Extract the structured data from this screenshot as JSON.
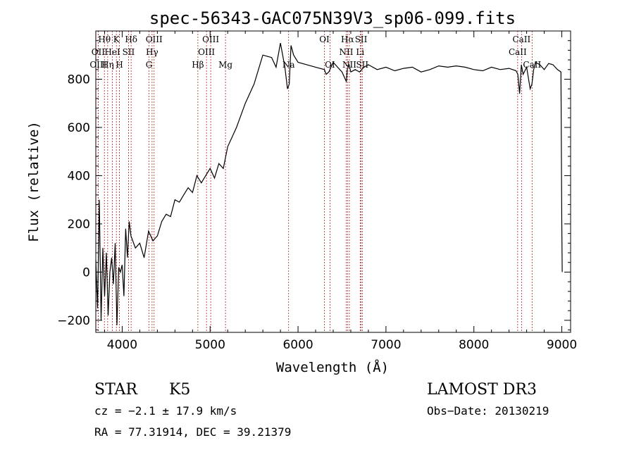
{
  "chart_data": {
    "type": "line",
    "title": "spec-56343-GAC075N39V3_sp06-099.fits",
    "xlabel": "Wavelength (Å)",
    "ylabel": "Flux (relative)",
    "xlim": [
      3700,
      9100
    ],
    "ylim": [
      -250,
      1000
    ],
    "xticks": [
      4000,
      5000,
      6000,
      7000,
      8000,
      9000
    ],
    "yticks": [
      -200,
      0,
      200,
      400,
      600,
      800
    ],
    "grid": false,
    "series": [
      {
        "x": [
          3700,
          3720,
          3740,
          3760,
          3780,
          3800,
          3820,
          3840,
          3860,
          3880,
          3900,
          3920,
          3940,
          3960,
          3980,
          4000,
          4020,
          4040,
          4060,
          4080,
          4100,
          4150,
          4200,
          4250,
          4300,
          4350,
          4400,
          4450,
          4500,
          4550,
          4600,
          4650,
          4700,
          4750,
          4800,
          4850,
          4900,
          4950,
          5000,
          5050,
          5100,
          5150,
          5200,
          5300,
          5400,
          5500,
          5600,
          5700,
          5750,
          5800,
          5850,
          5880,
          5900,
          5920,
          5950,
          6000,
          6100,
          6200,
          6300,
          6320,
          6350,
          6400,
          6450,
          6500,
          6550,
          6560,
          6580,
          6600,
          6650,
          6700,
          6750,
          6800,
          6900,
          7000,
          7100,
          7200,
          7300,
          7400,
          7500,
          7600,
          7700,
          7800,
          7900,
          8000,
          8100,
          8200,
          8300,
          8400,
          8480,
          8500,
          8520,
          8540,
          8560,
          8600,
          8640,
          8660,
          8680,
          8700,
          8750,
          8800,
          8850,
          8900,
          8950,
          8990,
          9000,
          9005
        ],
        "y": [
          50,
          -150,
          300,
          -200,
          100,
          -100,
          80,
          -180,
          0,
          60,
          -50,
          120,
          -220,
          20,
          0,
          30,
          -100,
          180,
          60,
          210,
          150,
          100,
          120,
          60,
          170,
          130,
          150,
          210,
          240,
          230,
          300,
          290,
          320,
          350,
          330,
          400,
          370,
          400,
          430,
          390,
          450,
          430,
          520,
          600,
          700,
          780,
          900,
          890,
          850,
          950,
          850,
          760,
          780,
          940,
          900,
          870,
          860,
          850,
          840,
          820,
          830,
          870,
          850,
          830,
          790,
          840,
          860,
          830,
          840,
          830,
          850,
          860,
          840,
          850,
          835,
          845,
          850,
          830,
          840,
          855,
          850,
          855,
          850,
          840,
          835,
          850,
          840,
          845,
          835,
          820,
          740,
          860,
          820,
          850,
          760,
          780,
          840,
          870,
          860,
          840,
          865,
          860,
          840,
          830,
          200,
          0
        ],
        "color": "#000000"
      }
    ],
    "lines": [
      {
        "name": "Hθ",
        "x": 3798,
        "row": 1
      },
      {
        "name": "OII",
        "x": 3727,
        "row": 2
      },
      {
        "name": "OIII",
        "x": 3727,
        "row": 3
      },
      {
        "name": "K",
        "x": 3934,
        "row": 1
      },
      {
        "name": "HeI",
        "x": 3889,
        "row": 2
      },
      {
        "name": "Hη",
        "x": 3835,
        "row": 3
      },
      {
        "name": "SII",
        "x": 4072,
        "row": 2
      },
      {
        "name": "H",
        "x": 3969,
        "row": 3
      },
      {
        "name": "Hδ",
        "x": 4102,
        "row": 1
      },
      {
        "name": "OIII",
        "x": 4363,
        "row": 1
      },
      {
        "name": "Hγ",
        "x": 4340,
        "row": 2
      },
      {
        "name": "G",
        "x": 4305,
        "row": 3
      },
      {
        "name": "Hβ",
        "x": 4861,
        "row": 3
      },
      {
        "name": "OIII",
        "x": 5007,
        "row": 1
      },
      {
        "name": "OIII",
        "x": 4959,
        "row": 2
      },
      {
        "name": "Mg",
        "x": 5175,
        "row": 3
      },
      {
        "name": "Na",
        "x": 5893,
        "row": 3
      },
      {
        "name": "OI",
        "x": 6300,
        "row": 1
      },
      {
        "name": "OI",
        "x": 6363,
        "row": 3
      },
      {
        "name": "Hα",
        "x": 6563,
        "row": 1
      },
      {
        "name": "SII",
        "x": 6717,
        "row": 1
      },
      {
        "name": "NII",
        "x": 6548,
        "row": 2
      },
      {
        "name": "NII",
        "x": 6584,
        "row": 3
      },
      {
        "name": "Li",
        "x": 6707,
        "row": 2
      },
      {
        "name": "SII",
        "x": 6731,
        "row": 3
      },
      {
        "name": "CaII",
        "x": 8542,
        "row": 1
      },
      {
        "name": "CaII",
        "x": 8498,
        "row": 2
      },
      {
        "name": "CaII",
        "x": 8662,
        "row": 3
      }
    ]
  },
  "info": {
    "class_type": "STAR",
    "subclass": "K5",
    "survey": "LAMOST DR3",
    "cz": "cz = −2.1 ± 17.9 km/s",
    "obs_date": "Obs−Date: 20130219",
    "radec": "RA =  77.31914, DEC =  39.21379"
  },
  "colors": {
    "line_marker": "#b22222",
    "spectrum": "#000000"
  }
}
